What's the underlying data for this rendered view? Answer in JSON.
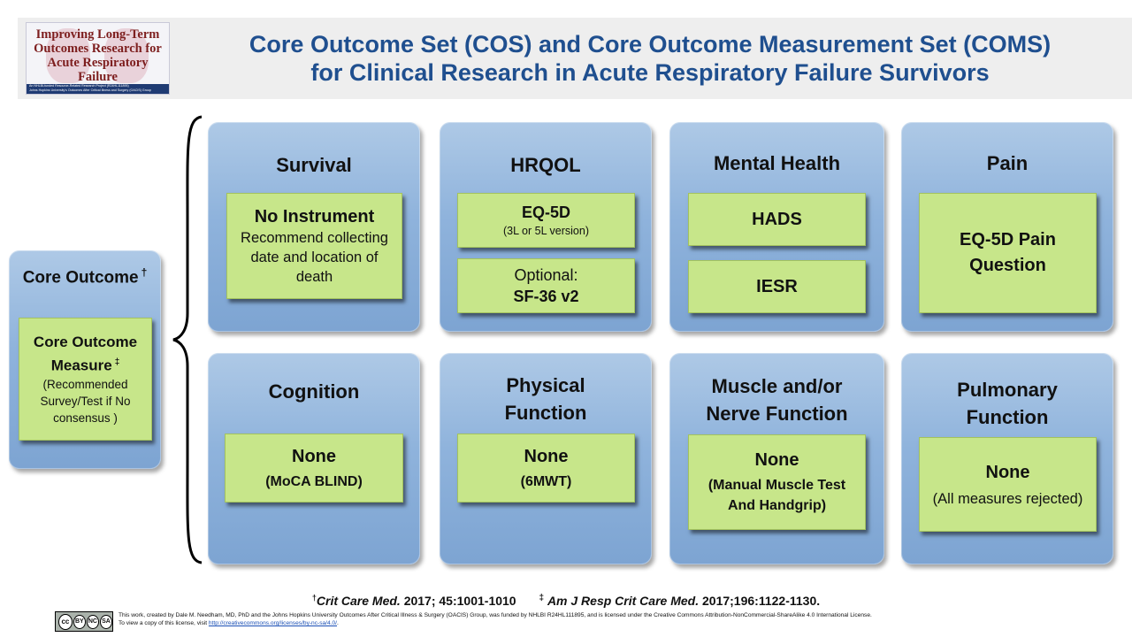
{
  "logo": {
    "line1": "Improving Long-Term",
    "line2": "Outcomes Research for",
    "line3": "Acute Respiratory Failure",
    "strip1": "An NHLBI-funded Resource-Related Research Project (R24HL111895)",
    "strip2": "Johns Hopkins University's Outcomes After Critical Illness and Surgery (OACIS) Group"
  },
  "title": {
    "line1": "Core Outcome Set (COS) and Core Outcome Measurement Set (COMS)",
    "line2": "for Clinical Research in Acute Respiratory Failure Survivors"
  },
  "legend": {
    "title": "Core Outcome",
    "title_mark": "†",
    "measure_line1": "Core Outcome",
    "measure_line2": "Measure",
    "measure_mark": "‡",
    "note_line1": "(Recommended",
    "note_line2": "Survey/Test if No",
    "note_line3": "consensus )"
  },
  "outcomes": {
    "survival": {
      "title": "Survival",
      "main": "No Instrument",
      "desc_line1": "Recommend collecting",
      "desc_line2": "date and location of",
      "desc_line3": "death"
    },
    "hrqol": {
      "title": "HRQOL",
      "main": "EQ-5D",
      "sub": "(3L or 5L version)",
      "optional_label": "Optional:",
      "optional_value": "SF-36 v2"
    },
    "mental_health": {
      "title": "Mental Health",
      "measure1": "HADS",
      "measure2": "IESR"
    },
    "pain": {
      "title": "Pain",
      "main_line1": "EQ-5D Pain",
      "main_line2": "Question"
    },
    "cognition": {
      "title": "Cognition",
      "main": "None",
      "sub": "(MoCA BLIND)"
    },
    "physical_function": {
      "title_line1": "Physical",
      "title_line2": "Function",
      "main": "None",
      "sub": "(6MWT)"
    },
    "muscle_nerve": {
      "title_line1": "Muscle and/or",
      "title_line2": "Nerve Function",
      "main": "None",
      "sub_line1": "(Manual Muscle Test",
      "sub_line2": "And Handgrip)"
    },
    "pulmonary_function": {
      "title_line1": "Pulmonary",
      "title_line2": "Function",
      "main": "None",
      "sub": "(All measures rejected)"
    }
  },
  "references": {
    "ref1_mark": "†",
    "ref1_journal": "Crit Care Med.",
    "ref1_rest": " 2017; 45:1001-1010",
    "ref2_mark": "‡",
    "ref2_journal": "Am J Resp Crit Care Med.",
    "ref2_rest": " 2017;196:1122-1130."
  },
  "license": {
    "badge_1": "cc",
    "badge_2": "BY",
    "badge_3": "NC",
    "badge_4": "SA",
    "line1": "This work, created by Dale M. Needham, MD, PhD and the Johns Hopkins University Outcomes After Critical Illness & Surgery (OACIS) Group, was funded by NHLBI R24HL111895, and is licensed under the Creative Commons Attribution-NonCommercial-ShareAlike 4.0 International License.",
    "line2_prefix": "To view a copy of this license, visit ",
    "line2_link": "http://creativecommons.org/licenses/by-nc-sa/4.0/",
    "line2_suffix": "."
  },
  "colors": {
    "title_blue": "#1f4f8f",
    "box_blue": "#8fb3dc",
    "box_green": "#c7e68a",
    "logo_red": "#7d1e1e"
  }
}
